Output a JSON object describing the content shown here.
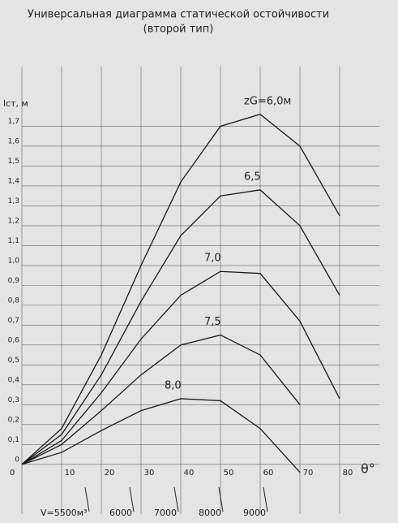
{
  "chart_data": {
    "type": "line",
    "title": "Универсальная диаграмма статической остойчивости",
    "subtitle": "(второй тип)",
    "y_label": "lст, м",
    "x_label": "θ°",
    "x": [
      0,
      10,
      20,
      30,
      40,
      50,
      60,
      70,
      80
    ],
    "series": [
      {
        "name": "zG=6,0м",
        "color": "#1a1a1a",
        "values": [
          0,
          0.18,
          0.55,
          1.0,
          1.42,
          1.7,
          1.76,
          1.6,
          1.25
        ]
      },
      {
        "name": "6,5",
        "color": "#1a1a1a",
        "values": [
          0,
          0.15,
          0.45,
          0.82,
          1.15,
          1.35,
          1.38,
          1.2,
          0.85
        ]
      },
      {
        "name": "7,0",
        "color": "#1a1a1a",
        "values": [
          0,
          0.12,
          0.36,
          0.63,
          0.85,
          0.97,
          0.96,
          0.72,
          0.33
        ]
      },
      {
        "name": "7,5",
        "color": "#1a1a1a",
        "values": [
          0,
          0.1,
          0.27,
          0.45,
          0.6,
          0.65,
          0.55,
          0.3,
          null
        ]
      },
      {
        "name": "8,0",
        "color": "#1a1a1a",
        "values": [
          0,
          0.06,
          0.17,
          0.27,
          0.33,
          0.32,
          0.18,
          -0.04,
          null
        ]
      }
    ],
    "volume_labels": [
      "V=5500м³",
      "6000",
      "7000",
      "8000",
      "9000"
    ],
    "xlim": [
      0,
      90
    ],
    "ylim": [
      -0.25,
      2.0
    ],
    "xticks": [
      0,
      10,
      20,
      30,
      40,
      50,
      60,
      70,
      80
    ],
    "yticks": [
      0,
      {
        "value": 0.1,
        "label": "0,1"
      },
      {
        "value": 0.2,
        "label": "0,2"
      },
      {
        "value": 0.3,
        "label": "0,3"
      },
      {
        "value": 0.4,
        "label": "0,4"
      },
      {
        "value": 0.5,
        "label": "0,5"
      },
      {
        "value": 0.6,
        "label": "0,6"
      },
      {
        "value": 0.7,
        "label": "0,7"
      },
      {
        "value": 0.8,
        "label": "0,8"
      },
      {
        "value": 0.9,
        "label": "0,9"
      },
      {
        "value": 1.0,
        "label": "1,0"
      },
      {
        "value": 1.1,
        "label": "1,1"
      },
      {
        "value": 1.2,
        "label": "1,2"
      },
      {
        "value": 1.3,
        "label": "1,3"
      },
      {
        "value": 1.4,
        "label": "1,4"
      },
      {
        "value": 1.5,
        "label": "1,5"
      },
      {
        "value": 1.6,
        "label": "1,6"
      },
      {
        "value": 1.7,
        "label": "1,7"
      }
    ],
    "grid": true
  }
}
